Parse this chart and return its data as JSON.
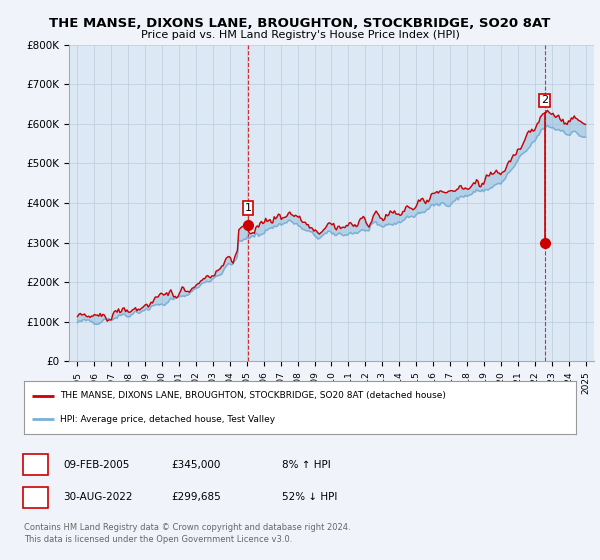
{
  "title": "THE MANSE, DIXONS LANE, BROUGHTON, STOCKBRIDGE, SO20 8AT",
  "subtitle": "Price paid vs. HM Land Registry's House Price Index (HPI)",
  "ylabel_ticks": [
    "£0",
    "£100K",
    "£200K",
    "£300K",
    "£400K",
    "£500K",
    "£600K",
    "£700K",
    "£800K"
  ],
  "ylim": [
    0,
    800000
  ],
  "ytick_vals": [
    0,
    100000,
    200000,
    300000,
    400000,
    500000,
    600000,
    700000,
    800000
  ],
  "hpi_color": "#7bafd4",
  "price_color": "#cc0000",
  "legend_line1": "THE MANSE, DIXONS LANE, BROUGHTON, STOCKBRIDGE, SO20 8AT (detached house)",
  "legend_line2": "HPI: Average price, detached house, Test Valley",
  "annotation1_date": "09-FEB-2005",
  "annotation1_price": "£345,000",
  "annotation1_hpi": "8% ↑ HPI",
  "annotation2_date": "30-AUG-2022",
  "annotation2_price": "£299,685",
  "annotation2_hpi": "52% ↓ HPI",
  "footer": "Contains HM Land Registry data © Crown copyright and database right 2024.\nThis data is licensed under the Open Government Licence v3.0.",
  "background_color": "#f0f4fa",
  "plot_bg_color": "#dce9f5",
  "fill_color": "#c5d9ee",
  "grid_color": "#bbccdd"
}
